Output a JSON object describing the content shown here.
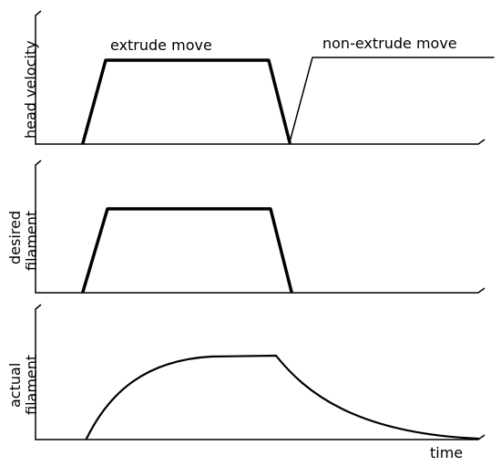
{
  "panels": [
    {
      "id": "head-velocity",
      "ylabel_lines": [
        "head velocity"
      ],
      "annotations": [
        "extrude move",
        "non-extrude move"
      ]
    },
    {
      "id": "desired-filament",
      "ylabel_lines": [
        "desired",
        "filament"
      ]
    },
    {
      "id": "actual-filament",
      "ylabel_lines": [
        "actual",
        "filament"
      ],
      "xlabel": "time"
    }
  ],
  "colors": {
    "line": "#000000",
    "background": "#ffffff"
  }
}
